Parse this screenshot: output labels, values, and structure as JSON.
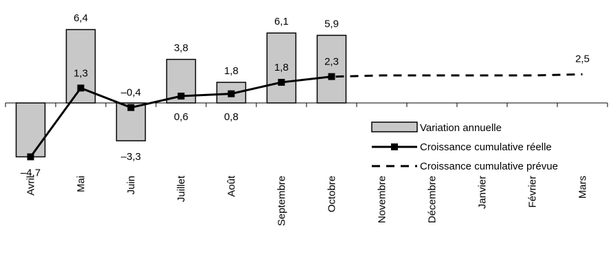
{
  "chart_data": {
    "type": "bar",
    "categories": [
      "Avril",
      "Mai",
      "Juin",
      "Juillet",
      "Août",
      "Septembre",
      "Octobre",
      "Novembre",
      "Décembre",
      "Janvier",
      "Février",
      "Mars"
    ],
    "series": [
      {
        "name": "Variation annuelle",
        "type": "bar",
        "values": [
          -4.7,
          6.4,
          -3.3,
          3.8,
          1.8,
          6.1,
          5.9,
          null,
          null,
          null,
          null,
          null
        ],
        "labels": [
          "–4,7",
          "6,4",
          "–3,3",
          "3,8",
          "1,8",
          "6,1",
          "5,9",
          "",
          "",
          "",
          "",
          ""
        ],
        "color": "#c8c8c8"
      },
      {
        "name": "Croissance cumulative réelle",
        "type": "line",
        "values": [
          -4.7,
          1.3,
          -0.4,
          0.6,
          0.8,
          1.8,
          2.3,
          null,
          null,
          null,
          null,
          null
        ],
        "labels": [
          "",
          "1,3",
          "–0,4",
          "0,6",
          "0,8",
          "1,8",
          "2,3",
          "",
          "",
          "",
          "",
          ""
        ],
        "color": "#000000"
      },
      {
        "name": "Croissance cumulative prévue",
        "type": "line-dashed",
        "values": [
          null,
          null,
          null,
          null,
          null,
          null,
          2.3,
          2.4,
          2.4,
          2.4,
          2.4,
          2.5
        ],
        "labels": [
          "",
          "",
          "",
          "",
          "",
          "",
          "",
          "",
          "",
          "",
          "",
          "2,5"
        ],
        "color": "#000000"
      }
    ],
    "ylim": [
      -6,
      8
    ],
    "grid": false,
    "legend_position": "right"
  }
}
